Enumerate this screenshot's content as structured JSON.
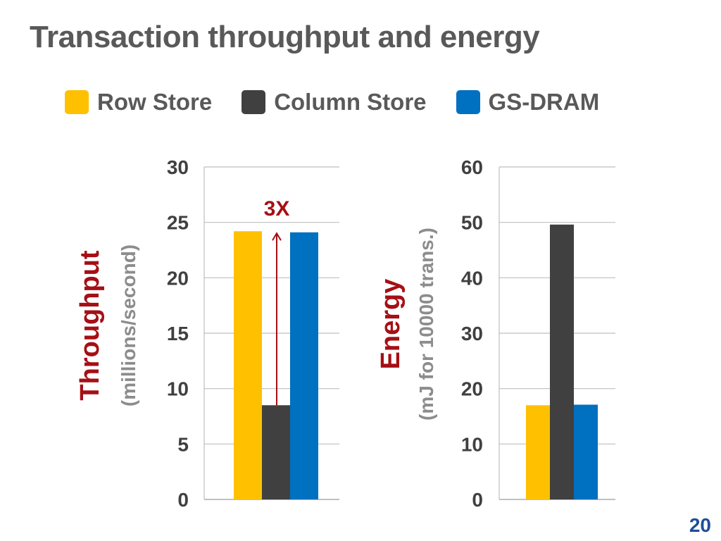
{
  "slide": {
    "title": "Transaction throughput and energy",
    "page_number": "20"
  },
  "legend": [
    {
      "label": "Row Store",
      "color": "#FFC000"
    },
    {
      "label": "Column Store",
      "color": "#404040"
    },
    {
      "label": "GS-DRAM",
      "color": "#0070C0"
    }
  ],
  "chart_data": [
    {
      "type": "bar",
      "title": "",
      "ylabel": "Throughput",
      "ylabel_sub": "(millions/second)",
      "ylim": [
        0,
        30
      ],
      "yticks": [
        0,
        5,
        10,
        15,
        20,
        25,
        30
      ],
      "series": [
        {
          "name": "Row Store",
          "values": [
            24.2
          ]
        },
        {
          "name": "Column Store",
          "values": [
            8.5
          ]
        },
        {
          "name": "GS-DRAM",
          "values": [
            24.1
          ]
        }
      ],
      "annotation": "3X",
      "grid": true
    },
    {
      "type": "bar",
      "title": "",
      "ylabel": "Energy",
      "ylabel_sub": "(mJ for 10000 trans.)",
      "ylim": [
        0,
        60
      ],
      "yticks": [
        0,
        10,
        20,
        30,
        40,
        50,
        60
      ],
      "series": [
        {
          "name": "Row Store",
          "values": [
            17
          ]
        },
        {
          "name": "Column Store",
          "values": [
            49.6
          ]
        },
        {
          "name": "GS-DRAM",
          "values": [
            17.1
          ]
        }
      ],
      "grid": true
    }
  ]
}
